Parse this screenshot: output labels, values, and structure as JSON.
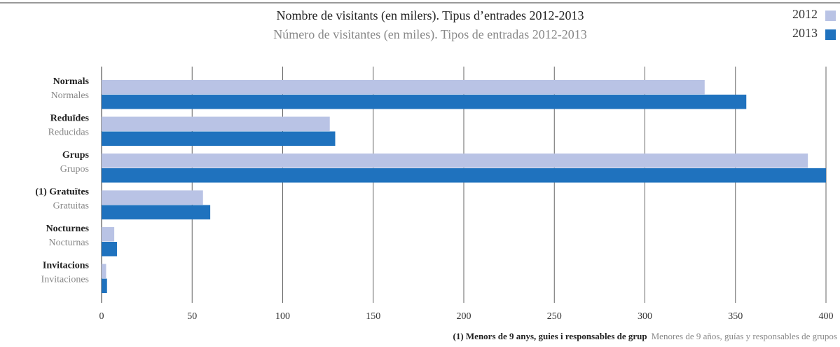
{
  "chart_data": {
    "type": "hbar",
    "title": "Nombre de visitants (en milers). Tipus d’entrades 2012-2013",
    "subtitle": "Número de visitantes (en miles). Tipos de entradas 2012-2013",
    "categories": [
      "Normals",
      "Reduïdes",
      "Grups",
      "(1) Gratuïtes",
      "Nocturnes",
      "Invitacions"
    ],
    "categories_secondary": [
      "Normales",
      "Reducidas",
      "Grupos",
      "Gratuitas",
      "Nocturnas",
      "Invitaciones"
    ],
    "series": [
      {
        "name": "2012",
        "color": "#b9c3e5",
        "values": [
          333,
          126,
          390,
          56,
          7,
          2.5
        ]
      },
      {
        "name": "2013",
        "color": "#1f72be",
        "values": [
          356,
          129,
          400,
          60,
          8.5,
          3
        ]
      }
    ],
    "xlim": [
      0,
      400
    ],
    "xticks": [
      0,
      50,
      100,
      150,
      200,
      250,
      300,
      350,
      400
    ],
    "grid": true,
    "legend": "top-right",
    "footnote": "(1) Menors de 9 anys, guies i responsables de grup",
    "footnote_secondary": "Menores de 9 años, guías y responsables de grupos"
  }
}
